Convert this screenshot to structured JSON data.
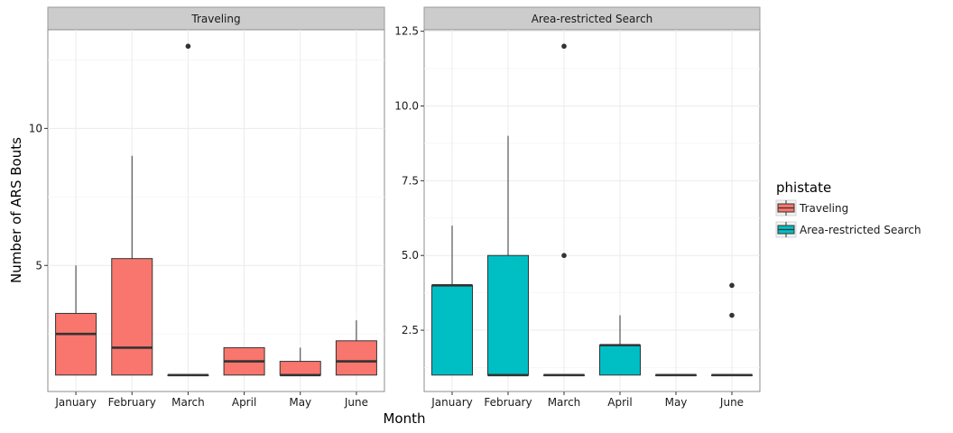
{
  "chart_data": {
    "type": "boxplot",
    "xlabel": "Month",
    "ylabel": "Number of ARS Bouts",
    "categories": [
      "January",
      "February",
      "March",
      "April",
      "May",
      "June"
    ],
    "legend": {
      "title": "phistate",
      "position": "right",
      "entries": [
        {
          "label": "Traveling",
          "color": "#F8766D"
        },
        {
          "label": "Area-restricted Search",
          "color": "#00BFC4"
        }
      ]
    },
    "panels": [
      {
        "strip": "Traveling",
        "color": "#F8766D",
        "ylim": [
          0.4,
          13.6
        ],
        "yticks": [
          5,
          10
        ],
        "yticklabels": [
          "5",
          "10"
        ],
        "boxes": [
          {
            "month": "January",
            "q1": 1,
            "median": 2.5,
            "q3": 3.25,
            "whisker_low": 1,
            "whisker_high": 5,
            "outliers": []
          },
          {
            "month": "February",
            "q1": 1,
            "median": 2,
            "q3": 5.25,
            "whisker_low": 1,
            "whisker_high": 9,
            "outliers": []
          },
          {
            "month": "March",
            "q1": 1,
            "median": 1,
            "q3": 1,
            "whisker_low": 1,
            "whisker_high": 1,
            "outliers": [
              13
            ]
          },
          {
            "month": "April",
            "q1": 1,
            "median": 1.5,
            "q3": 2,
            "whisker_low": 1,
            "whisker_high": 2,
            "outliers": []
          },
          {
            "month": "May",
            "q1": 1,
            "median": 1,
            "q3": 1.5,
            "whisker_low": 1,
            "whisker_high": 2,
            "outliers": []
          },
          {
            "month": "June",
            "q1": 1,
            "median": 1.5,
            "q3": 2.25,
            "whisker_low": 1,
            "whisker_high": 3,
            "outliers": []
          }
        ]
      },
      {
        "strip": "Area-restricted Search",
        "color": "#00BFC4",
        "ylim": [
          0.45,
          12.55
        ],
        "yticks": [
          2.5,
          5,
          7.5,
          10,
          12.5
        ],
        "yticklabels": [
          "2.5",
          "5.0",
          "7.5",
          "10.0",
          "12.5"
        ],
        "boxes": [
          {
            "month": "January",
            "q1": 1,
            "median": 4,
            "q3": 4,
            "whisker_low": 1,
            "whisker_high": 6,
            "outliers": []
          },
          {
            "month": "February",
            "q1": 1,
            "median": 1,
            "q3": 5,
            "whisker_low": 1,
            "whisker_high": 9,
            "outliers": []
          },
          {
            "month": "March",
            "q1": 1,
            "median": 1,
            "q3": 1,
            "whisker_low": 1,
            "whisker_high": 1,
            "outliers": [
              5,
              12
            ]
          },
          {
            "month": "April",
            "q1": 1,
            "median": 2,
            "q3": 2,
            "whisker_low": 1,
            "whisker_high": 3,
            "outliers": []
          },
          {
            "month": "May",
            "q1": 1,
            "median": 1,
            "q3": 1,
            "whisker_low": 1,
            "whisker_high": 1,
            "outliers": []
          },
          {
            "month": "June",
            "q1": 1,
            "median": 1,
            "q3": 1,
            "whisker_low": 1,
            "whisker_high": 1,
            "outliers": [
              3,
              4
            ]
          }
        ]
      }
    ]
  }
}
